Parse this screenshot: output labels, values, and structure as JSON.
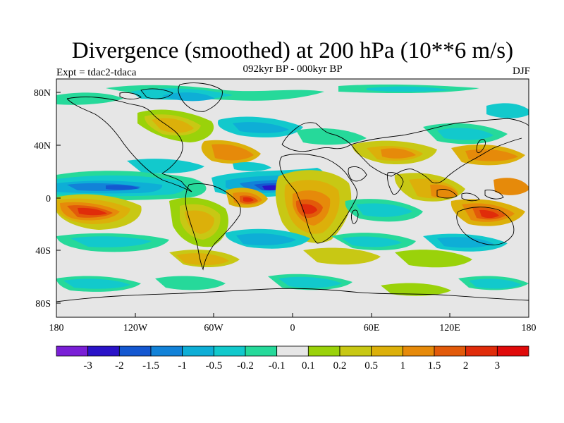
{
  "title": "Divergence (smoothed) at 200 hPa (10**6 m/s)",
  "subtitle": "092kyr BP - 000kyr BP",
  "left_label": "Expt = tdac2-tdaca",
  "right_label": "DJF",
  "y_ticks": [
    "80N",
    "40N",
    "0",
    "40S",
    "80S"
  ],
  "x_ticks": [
    "180",
    "120W",
    "60W",
    "0",
    "60E",
    "120E",
    "180"
  ],
  "colorbar": {
    "labels": [
      "-3",
      "-2",
      "-1.5",
      "-1",
      "-0.5",
      "-0.2",
      "-0.1",
      "0.1",
      "0.2",
      "0.5",
      "1",
      "1.5",
      "2",
      "3"
    ],
    "colors": [
      "#7a1fd6",
      "#2a13c8",
      "#1457d0",
      "#1282d8",
      "#0eaed6",
      "#12c9cc",
      "#26d99a",
      "#e6e6e6",
      "#9ad20a",
      "#c8c814",
      "#dcb00a",
      "#e68a0a",
      "#e25a0a",
      "#e02c0a",
      "#e00a0a"
    ]
  },
  "colors": {
    "background": "#e6e6e6",
    "coast": "#000000"
  }
}
